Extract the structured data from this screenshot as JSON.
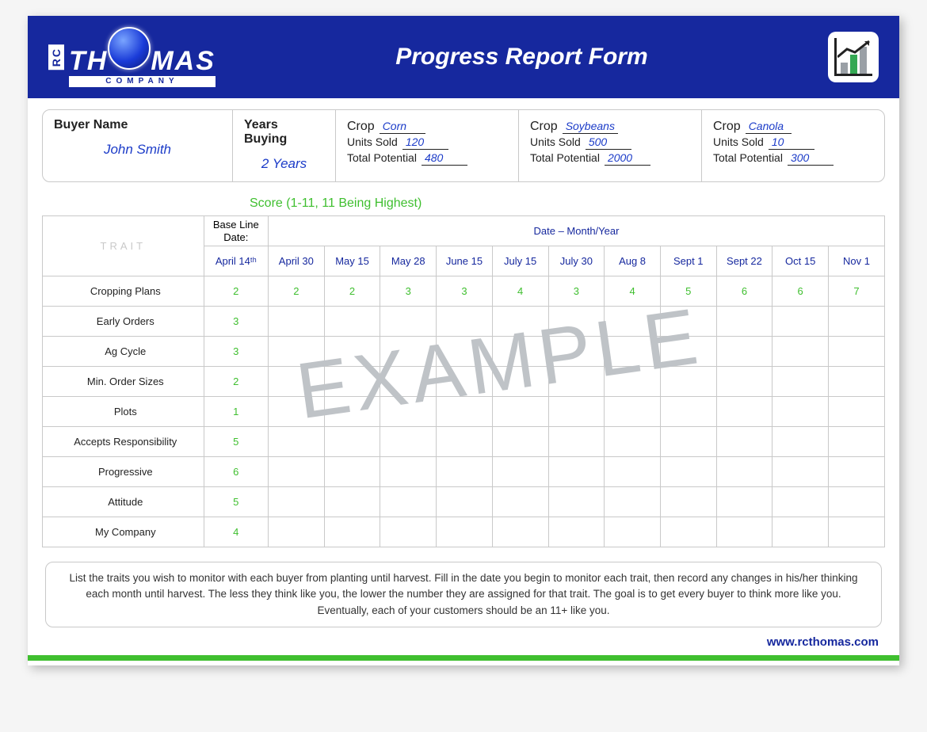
{
  "logo": {
    "word_left": "TH",
    "word_right": "MAS",
    "company": "COMPANY",
    "rc": "RC"
  },
  "header_title": "Progress Report Form",
  "info": {
    "buyer_label": "Buyer Name",
    "buyer_value": "John Smith",
    "years_label": "Years Buying",
    "years_value": "2 Years",
    "crops": [
      {
        "name": "Corn",
        "units_sold": "120",
        "total_potential": "480"
      },
      {
        "name": "Soybeans",
        "units_sold": "500",
        "total_potential": "2000"
      },
      {
        "name": "Canola",
        "units_sold": "10",
        "total_potential": "300"
      }
    ],
    "crop_label": "Crop",
    "units_sold_label": "Units Sold",
    "total_potential_label": "Total Potential"
  },
  "score_caption": "Score (1-11, 11 Being Highest)",
  "table": {
    "trait_header": "TRAIT",
    "baseline_header": "Base Line Date:",
    "baseline_date": "April 14ᵗʰ",
    "date_span_header": "Date – Month/Year",
    "dates": [
      "April 30",
      "May 15",
      "May 28",
      "June 15",
      "July 15",
      "July 30",
      "Aug 8",
      "Sept 1",
      "Sept 22",
      "Oct 15",
      "Nov 1"
    ],
    "rows": [
      {
        "label": "Cropping Plans",
        "base": "2",
        "scores": [
          "2",
          "2",
          "3",
          "3",
          "4",
          "3",
          "4",
          "5",
          "6",
          "6",
          "7"
        ]
      },
      {
        "label": "Early Orders",
        "base": "3",
        "scores": [
          "",
          "",
          "",
          "",
          "",
          "",
          "",
          "",
          "",
          "",
          ""
        ]
      },
      {
        "label": "Ag Cycle",
        "base": "3",
        "scores": [
          "",
          "",
          "",
          "",
          "",
          "",
          "",
          "",
          "",
          "",
          ""
        ]
      },
      {
        "label": "Min. Order Sizes",
        "base": "2",
        "scores": [
          "",
          "",
          "",
          "",
          "",
          "",
          "",
          "",
          "",
          "",
          ""
        ]
      },
      {
        "label": "Plots",
        "base": "1",
        "scores": [
          "",
          "",
          "",
          "",
          "",
          "",
          "",
          "",
          "",
          "",
          ""
        ]
      },
      {
        "label": "Accepts Responsibility",
        "base": "5",
        "scores": [
          "",
          "",
          "",
          "",
          "",
          "",
          "",
          "",
          "",
          "",
          ""
        ]
      },
      {
        "label": "Progressive",
        "base": "6",
        "scores": [
          "",
          "",
          "",
          "",
          "",
          "",
          "",
          "",
          "",
          "",
          ""
        ]
      },
      {
        "label": "Attitude",
        "base": "5",
        "scores": [
          "",
          "",
          "",
          "",
          "",
          "",
          "",
          "",
          "",
          "",
          ""
        ]
      },
      {
        "label": "My Company",
        "base": "4",
        "scores": [
          "",
          "",
          "",
          "",
          "",
          "",
          "",
          "",
          "",
          "",
          ""
        ]
      }
    ]
  },
  "watermark": "EXAMPLE",
  "note": "List the traits you wish to monitor with each buyer from planting until harvest.  Fill in the date you begin to monitor each trait, then record any changes in his/her thinking each month until harvest.  The less they think like you, the lower the number they are assigned for that trait.  The goal is to get every buyer to think more like you.  Eventually, each of your customers should be an 11+ like you.",
  "url": "www.rcthomas.com",
  "colors": {
    "brand_blue": "#16289e",
    "score_green": "#3fbf2f",
    "link_blue": "#1b3bc8",
    "border_gray": "#c9c9c9",
    "watermark_gray": "#bfc3c7"
  }
}
